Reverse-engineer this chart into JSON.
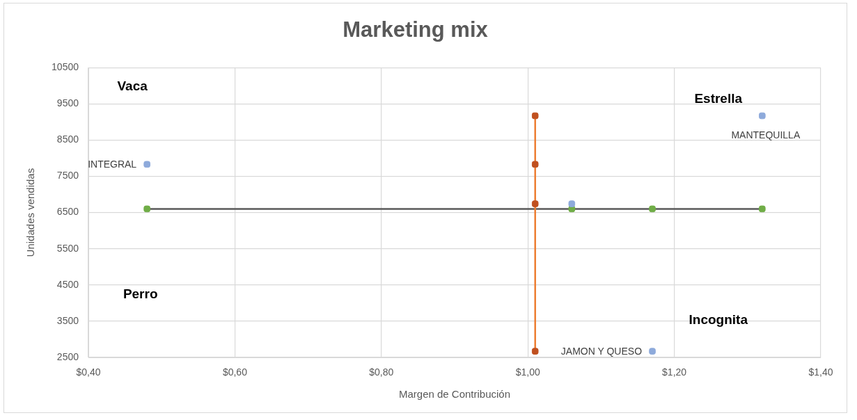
{
  "chart_data": {
    "type": "scatter",
    "title": "Marketing mix",
    "xlabel": "Margen de Contribución",
    "ylabel": "Unidades vendidas",
    "series": [
      {
        "color": "#8eaadb",
        "x": [
          0.48,
          1.32,
          1.06,
          1.17
        ],
        "values": [
          7830,
          9170,
          6740,
          2670
        ]
      },
      {
        "type": "line",
        "color": "#ed7d31",
        "colors": [
          "#c0501f",
          "#c0501f",
          "#c0501f",
          "#c0501f"
        ],
        "x": [
          1.01,
          1.01,
          1.01,
          1.01
        ],
        "values": [
          9170,
          7830,
          6740,
          2670
        ]
      },
      {
        "type": "line",
        "color": "#595959",
        "colors": [
          "#70ad47",
          "#70ad47",
          "#70ad47",
          "#70ad47"
        ],
        "x": [
          0.48,
          1.06,
          1.17,
          1.32
        ],
        "values": [
          6600,
          6600,
          6600,
          6600
        ]
      }
    ],
    "xlim": [
      0.4,
      1.4
    ],
    "xticks": [
      {
        "value": 0.4,
        "label": "$0,40"
      },
      {
        "value": 0.6,
        "label": "$0,60"
      },
      {
        "value": 0.8,
        "label": "$0,80"
      },
      {
        "value": 1.0,
        "label": "$1,00"
      },
      {
        "value": 1.2,
        "label": "$1,20"
      },
      {
        "value": 1.4,
        "label": "$1,40"
      }
    ],
    "ylim": [
      2500,
      10500
    ],
    "yticks": [
      2500,
      3500,
      4500,
      5500,
      6500,
      7500,
      8500,
      9500,
      10500
    ],
    "grid": true,
    "legend": false,
    "marker": "square",
    "annotations": [
      "Vaca",
      "Estrella",
      "Perro",
      "Incognita",
      {
        "text": "INTEGRAL",
        "x": 0.48,
        "y": 7830
      },
      {
        "text": "MANTEQUILLA",
        "x": 1.32,
        "y": 9170
      },
      {
        "text": "JAMON Y QUESO",
        "x": 1.17,
        "y": 2670
      }
    ]
  }
}
